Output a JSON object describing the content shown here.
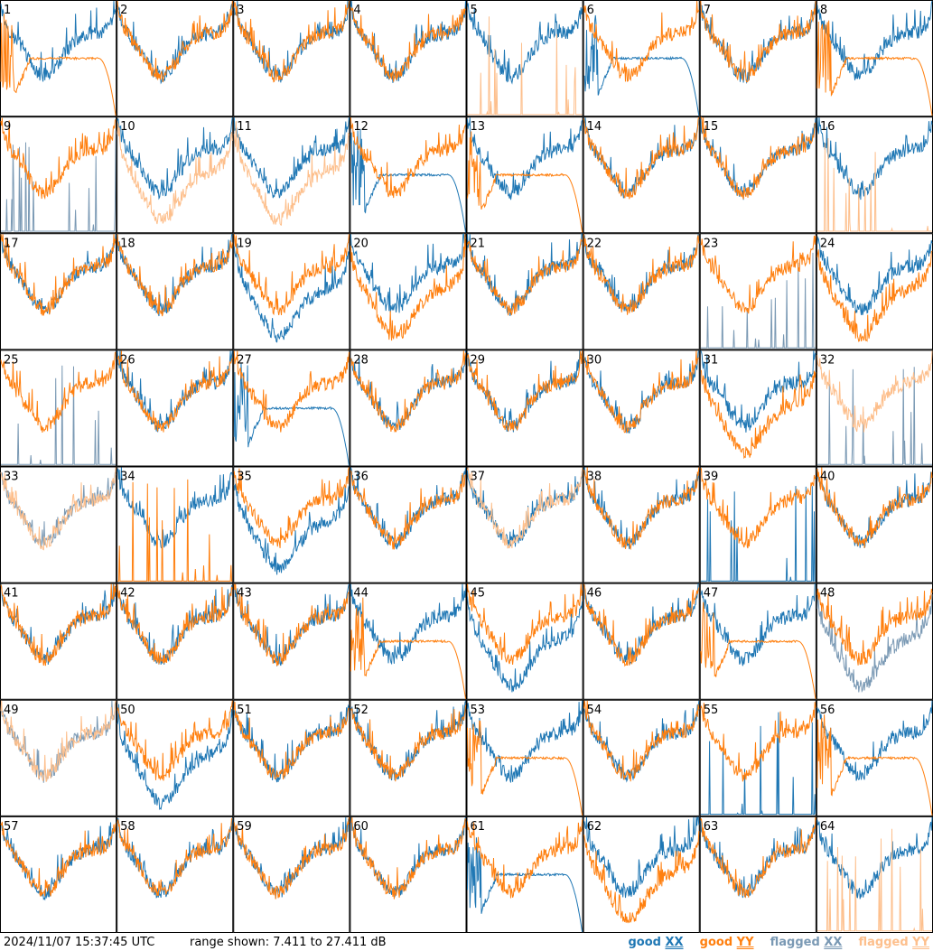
{
  "timestamp": "2024/11/07 15:37:45 UTC",
  "range_text": "range shown: 7.411 to 27.411 dB",
  "legend": [
    {
      "prefix": "good ",
      "pol": "XX",
      "color": "#1f77b4"
    },
    {
      "prefix": "good ",
      "pol": "YY",
      "color": "#ff7f0e"
    },
    {
      "prefix": "flagged ",
      "pol": "XX",
      "color": "#7a99b4"
    },
    {
      "prefix": "flagged ",
      "pol": "YY",
      "color": "#fdbf8c"
    }
  ],
  "colors": {
    "good_xx": "#1f77b4",
    "good_yy": "#ff7f0e",
    "flagged_xx": "#7a99b4",
    "flagged_yy": "#fdbf8c"
  },
  "chart_data": {
    "type": "line",
    "grid": "8x8",
    "ylim": [
      7.411,
      27.411
    ],
    "yunit": "dB",
    "panels": [
      {
        "id": 1,
        "xx": "good",
        "yy": "good",
        "xx_shape": "normal",
        "yy_shape": "decay"
      },
      {
        "id": 2,
        "xx": "good",
        "yy": "good",
        "xx_shape": "normal",
        "yy_shape": "normal"
      },
      {
        "id": 3,
        "xx": "good",
        "yy": "good",
        "xx_shape": "normal",
        "yy_shape": "normal"
      },
      {
        "id": 4,
        "xx": "good",
        "yy": "good",
        "xx_shape": "normal",
        "yy_shape": "normal"
      },
      {
        "id": 5,
        "xx": "good",
        "yy": "flagged",
        "xx_shape": "normal",
        "yy_shape": "spiky"
      },
      {
        "id": 6,
        "xx": "good",
        "yy": "good",
        "xx_shape": "decay",
        "yy_shape": "normal"
      },
      {
        "id": 7,
        "xx": "good",
        "yy": "good",
        "xx_shape": "normal",
        "yy_shape": "normal"
      },
      {
        "id": 8,
        "xx": "good",
        "yy": "good",
        "xx_shape": "normal",
        "yy_shape": "decay"
      },
      {
        "id": 9,
        "xx": "flagged",
        "yy": "good",
        "xx_shape": "spiky",
        "yy_shape": "normal"
      },
      {
        "id": 10,
        "xx": "good",
        "yy": "flagged",
        "xx_shape": "normal",
        "yy_shape": "low"
      },
      {
        "id": 11,
        "xx": "good",
        "yy": "flagged",
        "xx_shape": "normal",
        "yy_shape": "low"
      },
      {
        "id": 12,
        "xx": "good",
        "yy": "good",
        "xx_shape": "decay",
        "yy_shape": "normal"
      },
      {
        "id": 13,
        "xx": "good",
        "yy": "good",
        "xx_shape": "normal",
        "yy_shape": "decay"
      },
      {
        "id": 14,
        "xx": "good",
        "yy": "good",
        "xx_shape": "normal",
        "yy_shape": "normal"
      },
      {
        "id": 15,
        "xx": "good",
        "yy": "good",
        "xx_shape": "normal",
        "yy_shape": "normal"
      },
      {
        "id": 16,
        "xx": "good",
        "yy": "flagged",
        "xx_shape": "normal",
        "yy_shape": "spiky"
      },
      {
        "id": 17,
        "xx": "good",
        "yy": "good",
        "xx_shape": "normal",
        "yy_shape": "normal"
      },
      {
        "id": 18,
        "xx": "good",
        "yy": "good",
        "xx_shape": "normal",
        "yy_shape": "normal"
      },
      {
        "id": 19,
        "xx": "good",
        "yy": "good",
        "xx_shape": "low",
        "yy_shape": "normal"
      },
      {
        "id": 20,
        "xx": "good",
        "yy": "good",
        "xx_shape": "normal",
        "yy_shape": "low"
      },
      {
        "id": 21,
        "xx": "good",
        "yy": "good",
        "xx_shape": "normal",
        "yy_shape": "normal"
      },
      {
        "id": 22,
        "xx": "good",
        "yy": "good",
        "xx_shape": "normal",
        "yy_shape": "normal"
      },
      {
        "id": 23,
        "xx": "flagged",
        "yy": "good",
        "xx_shape": "spiky",
        "yy_shape": "normal"
      },
      {
        "id": 24,
        "xx": "good",
        "yy": "good",
        "xx_shape": "normal",
        "yy_shape": "low"
      },
      {
        "id": 25,
        "xx": "flagged",
        "yy": "good",
        "xx_shape": "spiky",
        "yy_shape": "normal"
      },
      {
        "id": 26,
        "xx": "good",
        "yy": "good",
        "xx_shape": "normal",
        "yy_shape": "normal"
      },
      {
        "id": 27,
        "xx": "good",
        "yy": "good",
        "xx_shape": "decay",
        "yy_shape": "normal"
      },
      {
        "id": 28,
        "xx": "good",
        "yy": "good",
        "xx_shape": "normal",
        "yy_shape": "normal"
      },
      {
        "id": 29,
        "xx": "good",
        "yy": "good",
        "xx_shape": "normal",
        "yy_shape": "normal"
      },
      {
        "id": 30,
        "xx": "good",
        "yy": "good",
        "xx_shape": "normal",
        "yy_shape": "normal"
      },
      {
        "id": 31,
        "xx": "good",
        "yy": "good",
        "xx_shape": "normal",
        "yy_shape": "low"
      },
      {
        "id": 32,
        "xx": "flagged",
        "yy": "flagged",
        "xx_shape": "spiky",
        "yy_shape": "normal"
      },
      {
        "id": 33,
        "xx": "flagged",
        "yy": "flagged",
        "xx_shape": "normal",
        "yy_shape": "normal"
      },
      {
        "id": 34,
        "xx": "good",
        "yy": "good",
        "xx_shape": "normal",
        "yy_shape": "spiky"
      },
      {
        "id": 35,
        "xx": "good",
        "yy": "good",
        "xx_shape": "low",
        "yy_shape": "normal"
      },
      {
        "id": 36,
        "xx": "good",
        "yy": "good",
        "xx_shape": "normal",
        "yy_shape": "normal"
      },
      {
        "id": 37,
        "xx": "good",
        "yy": "flagged",
        "xx_shape": "normal",
        "yy_shape": "normal"
      },
      {
        "id": 38,
        "xx": "good",
        "yy": "good",
        "xx_shape": "normal",
        "yy_shape": "normal"
      },
      {
        "id": 39,
        "xx": "good",
        "yy": "good",
        "xx_shape": "spiky",
        "yy_shape": "normal"
      },
      {
        "id": 40,
        "xx": "good",
        "yy": "good",
        "xx_shape": "normal",
        "yy_shape": "normal"
      },
      {
        "id": 41,
        "xx": "good",
        "yy": "good",
        "xx_shape": "normal",
        "yy_shape": "normal"
      },
      {
        "id": 42,
        "xx": "good",
        "yy": "good",
        "xx_shape": "normal",
        "yy_shape": "normal"
      },
      {
        "id": 43,
        "xx": "good",
        "yy": "good",
        "xx_shape": "normal",
        "yy_shape": "normal"
      },
      {
        "id": 44,
        "xx": "good",
        "yy": "good",
        "xx_shape": "normal",
        "yy_shape": "decay"
      },
      {
        "id": 45,
        "xx": "good",
        "yy": "good",
        "xx_shape": "low",
        "yy_shape": "normal"
      },
      {
        "id": 46,
        "xx": "good",
        "yy": "good",
        "xx_shape": "normal",
        "yy_shape": "normal"
      },
      {
        "id": 47,
        "xx": "good",
        "yy": "good",
        "xx_shape": "normal",
        "yy_shape": "decay"
      },
      {
        "id": 48,
        "xx": "flagged",
        "yy": "good",
        "xx_shape": "low",
        "yy_shape": "normal"
      },
      {
        "id": 49,
        "xx": "flagged",
        "yy": "flagged",
        "xx_shape": "normal",
        "yy_shape": "normal"
      },
      {
        "id": 50,
        "xx": "good",
        "yy": "good",
        "xx_shape": "low",
        "yy_shape": "normal"
      },
      {
        "id": 51,
        "xx": "good",
        "yy": "good",
        "xx_shape": "normal",
        "yy_shape": "normal"
      },
      {
        "id": 52,
        "xx": "good",
        "yy": "good",
        "xx_shape": "normal",
        "yy_shape": "normal"
      },
      {
        "id": 53,
        "xx": "good",
        "yy": "good",
        "xx_shape": "normal",
        "yy_shape": "decay"
      },
      {
        "id": 54,
        "xx": "good",
        "yy": "good",
        "xx_shape": "normal",
        "yy_shape": "normal"
      },
      {
        "id": 55,
        "xx": "good",
        "yy": "good",
        "xx_shape": "spiky",
        "yy_shape": "normal"
      },
      {
        "id": 56,
        "xx": "good",
        "yy": "good",
        "xx_shape": "normal",
        "yy_shape": "decay"
      },
      {
        "id": 57,
        "xx": "good",
        "yy": "good",
        "xx_shape": "normal",
        "yy_shape": "normal"
      },
      {
        "id": 58,
        "xx": "good",
        "yy": "good",
        "xx_shape": "normal",
        "yy_shape": "normal"
      },
      {
        "id": 59,
        "xx": "good",
        "yy": "good",
        "xx_shape": "normal",
        "yy_shape": "normal"
      },
      {
        "id": 60,
        "xx": "good",
        "yy": "good",
        "xx_shape": "normal",
        "yy_shape": "normal"
      },
      {
        "id": 61,
        "xx": "good",
        "yy": "good",
        "xx_shape": "decay",
        "yy_shape": "normal"
      },
      {
        "id": 62,
        "xx": "good",
        "yy": "good",
        "xx_shape": "normal",
        "yy_shape": "low"
      },
      {
        "id": 63,
        "xx": "good",
        "yy": "good",
        "xx_shape": "normal",
        "yy_shape": "normal"
      },
      {
        "id": 64,
        "xx": "good",
        "yy": "flagged",
        "xx_shape": "normal",
        "yy_shape": "spiky"
      }
    ]
  }
}
